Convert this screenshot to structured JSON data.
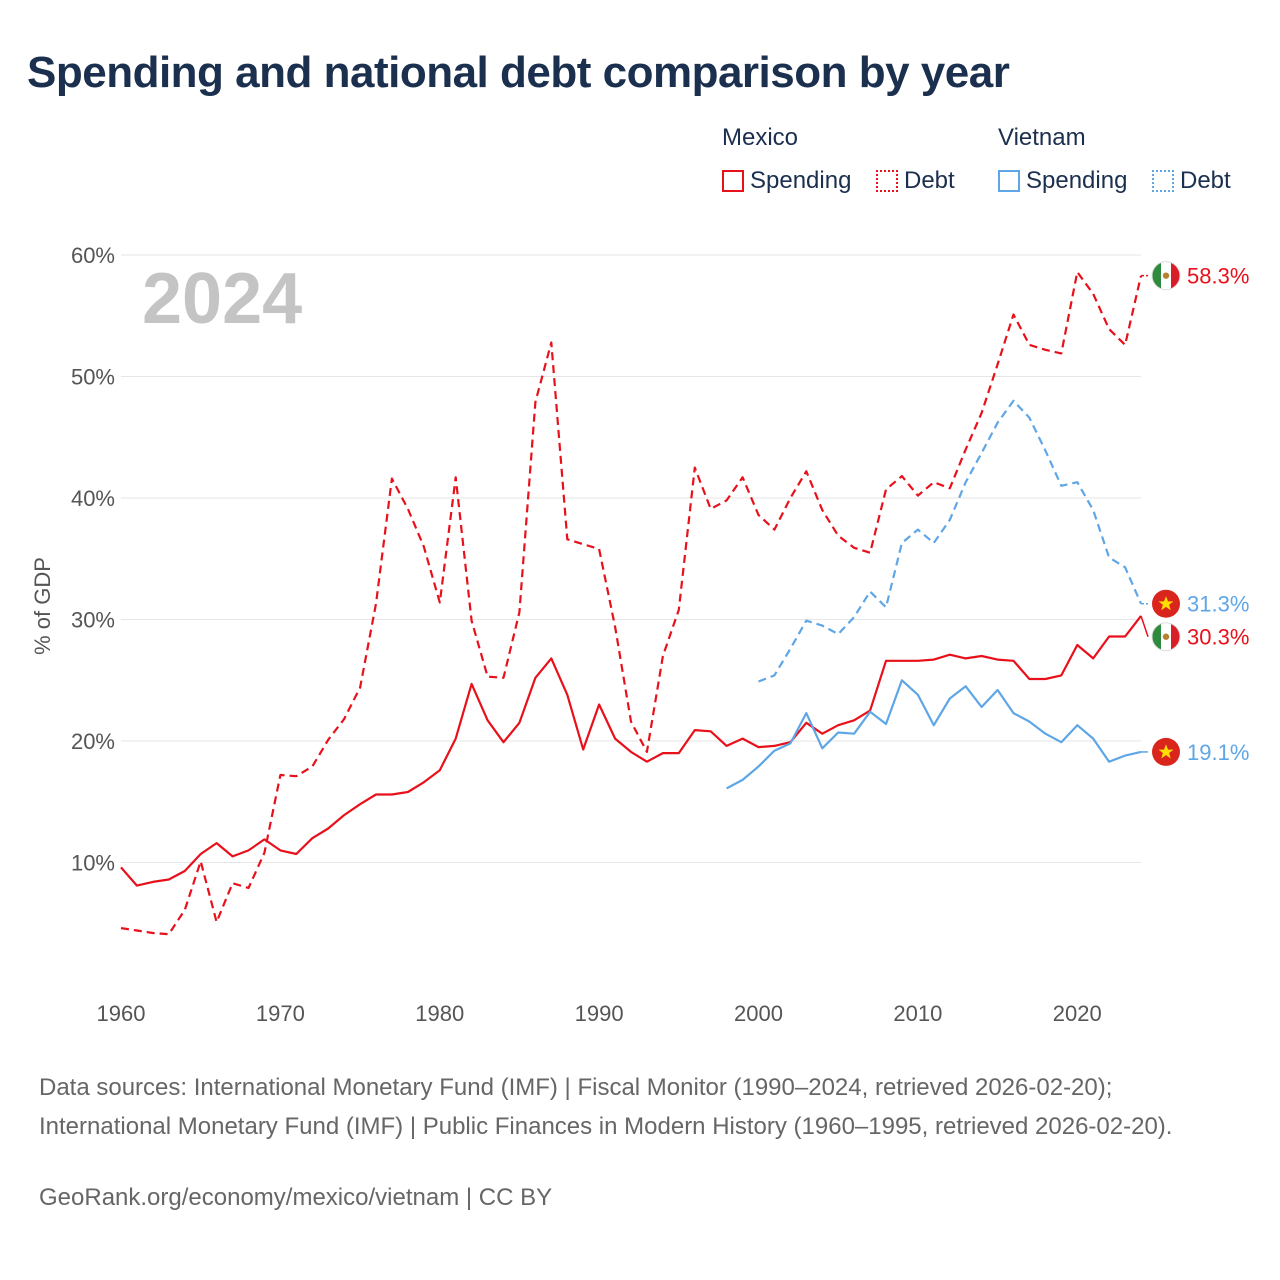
{
  "title": "Spending and national debt comparison by year",
  "year_label": "2024",
  "legend": {
    "groups": [
      {
        "country": "Mexico",
        "color": "#e8101a",
        "items": [
          "Spending",
          "Debt"
        ]
      },
      {
        "country": "Vietnam",
        "color": "#5ea6e6",
        "items": [
          "Spending",
          "Debt"
        ]
      }
    ]
  },
  "sources": "Data sources: International Monetary Fund (IMF) | Fiscal Monitor (1990–2024, retrieved 2026-02-20); International Monetary Fund (IMF) | Public Finances in Modern History (1960–1995, retrieved 2026-02-20).",
  "credit": "GeoRank.org/economy/mexico/vietnam | CC BY",
  "chart_data": {
    "type": "line",
    "title": "Spending and national debt comparison by year",
    "xlabel": "",
    "ylabel": "% of GDP",
    "xlim": [
      1960,
      2024
    ],
    "ylim": [
      0,
      60
    ],
    "x_ticks": [
      "1960",
      "1970",
      "1980",
      "1990",
      "2000",
      "2010",
      "2020"
    ],
    "y_ticks": [
      "10%",
      "20%",
      "30%",
      "40%",
      "50%",
      "60%"
    ],
    "grid": true,
    "legend_position": "top-right",
    "series": [
      {
        "name": "Mexico Spending",
        "country": "Mexico",
        "metric": "Spending",
        "color": "#e8101a",
        "dash": false,
        "end_label": "30.3%",
        "end_icon": "mexico-flag-icon",
        "points": [
          [
            1960,
            9.6
          ],
          [
            1961,
            8.1
          ],
          [
            1962,
            8.4
          ],
          [
            1963,
            8.6
          ],
          [
            1964,
            9.3
          ],
          [
            1965,
            10.7
          ],
          [
            1966,
            11.6
          ],
          [
            1967,
            10.5
          ],
          [
            1968,
            11.0
          ],
          [
            1969,
            11.9
          ],
          [
            1970,
            11.0
          ],
          [
            1971,
            10.7
          ],
          [
            1972,
            12.0
          ],
          [
            1973,
            12.8
          ],
          [
            1974,
            13.9
          ],
          [
            1975,
            14.8
          ],
          [
            1976,
            15.6
          ],
          [
            1977,
            15.6
          ],
          [
            1978,
            15.8
          ],
          [
            1979,
            16.6
          ],
          [
            1980,
            17.6
          ],
          [
            1981,
            20.2
          ],
          [
            1982,
            24.7
          ],
          [
            1983,
            21.7
          ],
          [
            1984,
            19.9
          ],
          [
            1985,
            21.5
          ],
          [
            1986,
            25.2
          ],
          [
            1987,
            26.8
          ],
          [
            1988,
            23.8
          ],
          [
            1989,
            19.3
          ],
          [
            1990,
            23.0
          ],
          [
            1991,
            20.2
          ],
          [
            1992,
            19.1
          ],
          [
            1993,
            18.3
          ],
          [
            1994,
            19.0
          ],
          [
            1995,
            19.0
          ],
          [
            1996,
            20.9
          ],
          [
            1997,
            20.8
          ],
          [
            1998,
            19.6
          ],
          [
            1999,
            20.2
          ],
          [
            2000,
            19.5
          ],
          [
            2001,
            19.6
          ],
          [
            2002,
            19.9
          ],
          [
            2003,
            21.5
          ],
          [
            2004,
            20.6
          ],
          [
            2005,
            21.3
          ],
          [
            2006,
            21.7
          ],
          [
            2007,
            22.5
          ],
          [
            2008,
            26.6
          ],
          [
            2009,
            26.6
          ],
          [
            2010,
            26.6
          ],
          [
            2011,
            26.7
          ],
          [
            2012,
            27.1
          ],
          [
            2013,
            26.8
          ],
          [
            2014,
            27.0
          ],
          [
            2015,
            26.7
          ],
          [
            2016,
            26.6
          ],
          [
            2017,
            25.1
          ],
          [
            2018,
            25.1
          ],
          [
            2019,
            25.4
          ],
          [
            2020,
            27.9
          ],
          [
            2021,
            26.8
          ],
          [
            2022,
            28.6
          ],
          [
            2023,
            28.6
          ],
          [
            2024,
            30.3
          ]
        ]
      },
      {
        "name": "Mexico Debt",
        "country": "Mexico",
        "metric": "Debt",
        "color": "#e8101a",
        "dash": true,
        "end_label": "58.3%",
        "end_icon": "mexico-flag-icon",
        "points": [
          [
            1960,
            4.6
          ],
          [
            1961,
            4.4
          ],
          [
            1962,
            4.2
          ],
          [
            1963,
            4.1
          ],
          [
            1964,
            6.1
          ],
          [
            1965,
            10.1
          ],
          [
            1966,
            5.1
          ],
          [
            1967,
            8.3
          ],
          [
            1968,
            7.9
          ],
          [
            1969,
            10.8
          ],
          [
            1970,
            17.2
          ],
          [
            1971,
            17.1
          ],
          [
            1972,
            17.9
          ],
          [
            1973,
            20.1
          ],
          [
            1974,
            21.8
          ],
          [
            1975,
            24.4
          ],
          [
            1976,
            31.3
          ],
          [
            1977,
            41.6
          ],
          [
            1978,
            39.1
          ],
          [
            1979,
            36.0
          ],
          [
            1980,
            31.4
          ],
          [
            1981,
            41.7
          ],
          [
            1982,
            29.9
          ],
          [
            1983,
            25.3
          ],
          [
            1984,
            25.2
          ],
          [
            1985,
            30.6
          ],
          [
            1986,
            47.9
          ],
          [
            1987,
            52.8
          ],
          [
            1988,
            36.6
          ],
          [
            1989,
            36.2
          ],
          [
            1990,
            35.8
          ],
          [
            1991,
            29.4
          ],
          [
            1992,
            21.6
          ],
          [
            1993,
            19.1
          ],
          [
            1994,
            27.0
          ],
          [
            1995,
            30.8
          ],
          [
            1996,
            42.5
          ],
          [
            1997,
            39.1
          ],
          [
            1998,
            39.8
          ],
          [
            1999,
            41.7
          ],
          [
            2000,
            38.6
          ],
          [
            2001,
            37.4
          ],
          [
            2002,
            40.0
          ],
          [
            2003,
            42.2
          ],
          [
            2004,
            39.0
          ],
          [
            2005,
            36.9
          ],
          [
            2006,
            35.9
          ],
          [
            2007,
            35.5
          ],
          [
            2008,
            40.7
          ],
          [
            2009,
            41.8
          ],
          [
            2010,
            40.2
          ],
          [
            2011,
            41.3
          ],
          [
            2012,
            40.8
          ],
          [
            2013,
            44.0
          ],
          [
            2014,
            47.0
          ],
          [
            2015,
            51.0
          ],
          [
            2016,
            55.1
          ],
          [
            2017,
            52.6
          ],
          [
            2018,
            52.2
          ],
          [
            2019,
            51.9
          ],
          [
            2020,
            58.6
          ],
          [
            2021,
            56.8
          ],
          [
            2022,
            53.9
          ],
          [
            2023,
            52.6
          ],
          [
            2024,
            58.3
          ]
        ]
      },
      {
        "name": "Vietnam Spending",
        "country": "Vietnam",
        "metric": "Spending",
        "color": "#5ea6e6",
        "dash": false,
        "end_label": "19.1%",
        "end_icon": "vietnam-flag-icon",
        "points": [
          [
            1998,
            16.1
          ],
          [
            1999,
            16.8
          ],
          [
            2000,
            17.9
          ],
          [
            2001,
            19.2
          ],
          [
            2002,
            19.8
          ],
          [
            2003,
            22.3
          ],
          [
            2004,
            19.4
          ],
          [
            2005,
            20.7
          ],
          [
            2006,
            20.6
          ],
          [
            2007,
            22.4
          ],
          [
            2008,
            21.4
          ],
          [
            2009,
            25.0
          ],
          [
            2010,
            23.8
          ],
          [
            2011,
            21.3
          ],
          [
            2012,
            23.5
          ],
          [
            2013,
            24.5
          ],
          [
            2014,
            22.8
          ],
          [
            2015,
            24.2
          ],
          [
            2016,
            22.3
          ],
          [
            2017,
            21.6
          ],
          [
            2018,
            20.6
          ],
          [
            2019,
            19.9
          ],
          [
            2020,
            21.3
          ],
          [
            2021,
            20.2
          ],
          [
            2022,
            18.3
          ],
          [
            2023,
            18.8
          ],
          [
            2024,
            19.1
          ]
        ]
      },
      {
        "name": "Vietnam Debt",
        "country": "Vietnam",
        "metric": "Debt",
        "color": "#5ea6e6",
        "dash": true,
        "end_label": "31.3%",
        "end_icon": "vietnam-flag-icon",
        "points": [
          [
            2000,
            24.9
          ],
          [
            2001,
            25.4
          ],
          [
            2002,
            27.6
          ],
          [
            2003,
            29.9
          ],
          [
            2004,
            29.5
          ],
          [
            2005,
            28.8
          ],
          [
            2006,
            30.2
          ],
          [
            2007,
            32.3
          ],
          [
            2008,
            31.0
          ],
          [
            2009,
            36.3
          ],
          [
            2010,
            37.4
          ],
          [
            2011,
            36.3
          ],
          [
            2012,
            38.2
          ],
          [
            2013,
            41.3
          ],
          [
            2014,
            43.7
          ],
          [
            2015,
            46.2
          ],
          [
            2016,
            48.0
          ],
          [
            2017,
            46.6
          ],
          [
            2018,
            43.9
          ],
          [
            2019,
            41.0
          ],
          [
            2020,
            41.3
          ],
          [
            2021,
            39.0
          ],
          [
            2022,
            35.1
          ],
          [
            2023,
            34.3
          ],
          [
            2024,
            31.3
          ]
        ]
      }
    ]
  }
}
